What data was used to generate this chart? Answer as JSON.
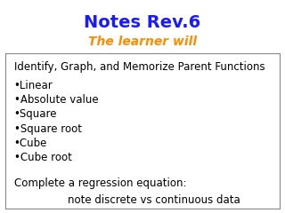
{
  "title": "Notes Rev.6",
  "subtitle": "The learner will",
  "title_color": "#1a1aff",
  "subtitle_color": "#ff8c00",
  "background_color": "#ffffff",
  "border_color": "#888888",
  "text_color": "#000000",
  "header_line1": "Identify, Graph, and Memorize Parent Functions",
  "bullet_items": [
    "•Linear",
    "•Absolute value",
    "•Square",
    "•Square root",
    "•Cube",
    "•Cube root"
  ],
  "footer_line1": "Complete a regression equation:",
  "footer_line2": "                note discrete vs continuous data",
  "title_fontsize": 14,
  "subtitle_fontsize": 10,
  "body_fontsize": 8.5
}
